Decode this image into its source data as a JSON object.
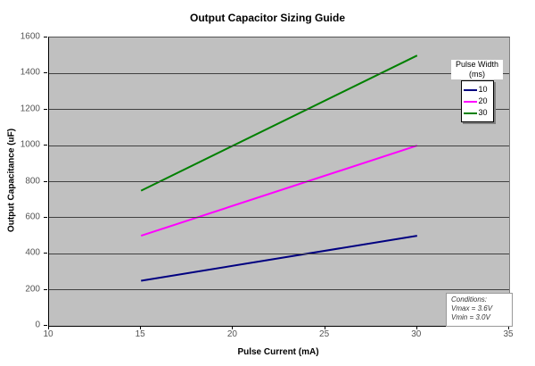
{
  "chart_data": {
    "type": "line",
    "title": "Output Capacitor Sizing Guide",
    "xlabel": "Pulse Current (mA)",
    "ylabel": "Output Capacitance (uF)",
    "xlim": [
      10,
      35
    ],
    "ylim": [
      0,
      1600
    ],
    "x_ticks": [
      10,
      15,
      20,
      25,
      30,
      35
    ],
    "y_ticks": [
      0,
      200,
      400,
      600,
      800,
      1000,
      1200,
      1400,
      1600
    ],
    "grid": "horizontal-major",
    "plot_background": "#c0c0c0",
    "gridline_color": "#404040",
    "legend_position": "top-right",
    "x": [
      15,
      30
    ],
    "series": [
      {
        "name": "10",
        "color": "#000080",
        "values": [
          250,
          500
        ]
      },
      {
        "name": "20",
        "color": "#ff00ff",
        "values": [
          500,
          1000
        ]
      },
      {
        "name": "30",
        "color": "#008000",
        "values": [
          750,
          1500
        ]
      }
    ]
  },
  "legend": {
    "title_line1": "Pulse Width",
    "title_line2": "(ms)"
  },
  "annotation": {
    "title": "Conditions:",
    "line1": "Vmax = 3.6V",
    "line2": "Vmin = 3.0V"
  }
}
